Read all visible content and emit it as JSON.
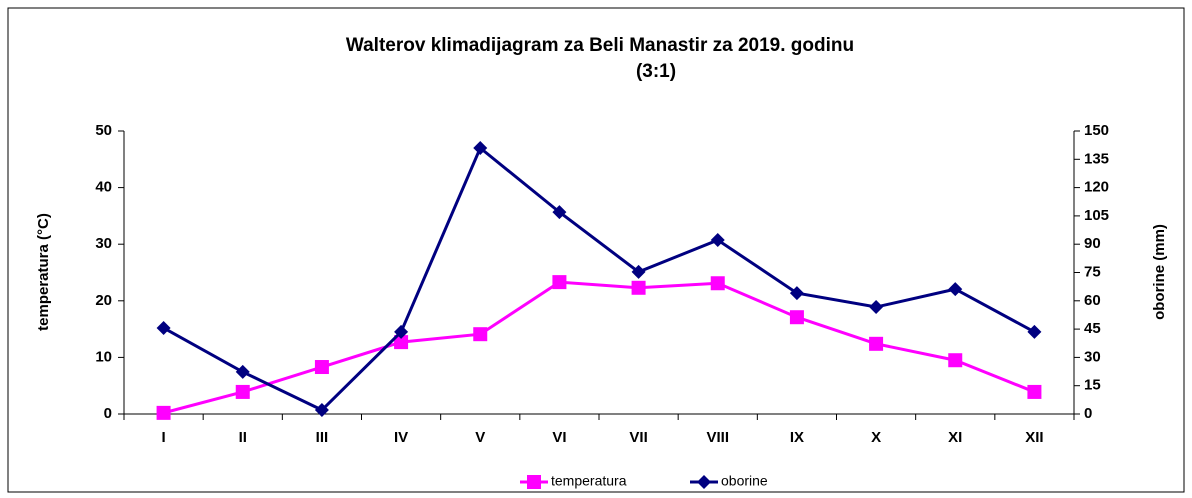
{
  "chart_data": {
    "type": "line",
    "title": "Walterov klimadijagram za Beli Manastir za 2019. godinu",
    "subtitle": "(3:1)",
    "ylabel": "temperatura (°C)",
    "y2label": "oborine (mm)",
    "categories": [
      "I",
      "II",
      "III",
      "IV",
      "V",
      "VI",
      "VII",
      "VIII",
      "IX",
      "X",
      "XI",
      "XII"
    ],
    "series": [
      {
        "name": "temperatura",
        "color": "#ff00ff",
        "marker": "square",
        "values": [
          0.2,
          3.9,
          8.3,
          12.7,
          14.1,
          23.3,
          22.3,
          23.1,
          17.1,
          12.4,
          9.5,
          3.9
        ]
      },
      {
        "name": "oborine",
        "color": "#000080",
        "marker": "diamond",
        "axis": "y2",
        "values": [
          45.6,
          22.3,
          2.1,
          43.5,
          141,
          107,
          75.3,
          92.2,
          64.1,
          56.7,
          66.2,
          43.5
        ]
      }
    ],
    "ylim": [
      0,
      50
    ],
    "yticks": [
      0,
      10,
      20,
      30,
      40,
      50
    ],
    "y2lim": [
      0,
      150
    ],
    "y2ticks": [
      0,
      15,
      30,
      45,
      60,
      75,
      90,
      105,
      120,
      135,
      150
    ],
    "grid": false,
    "legend": "bottom"
  }
}
